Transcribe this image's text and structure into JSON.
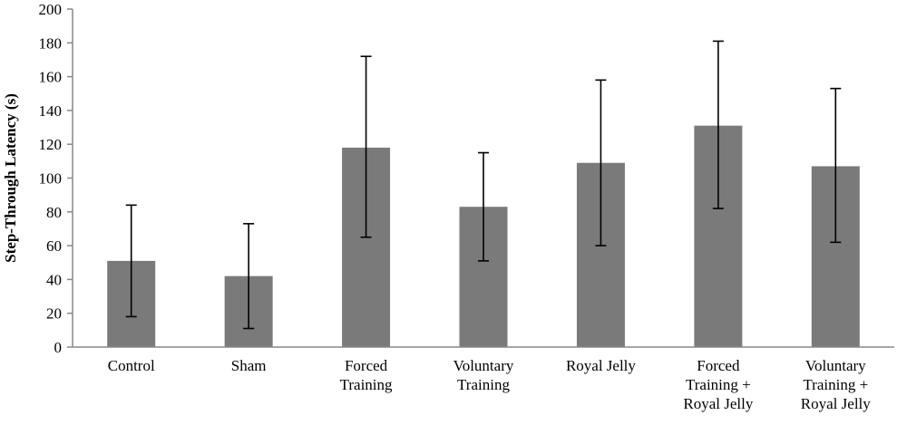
{
  "chart_data": {
    "type": "bar",
    "title": "",
    "xlabel": "",
    "ylabel": "Step-Through Latency (s)",
    "ylim": [
      0,
      200
    ],
    "yticks": [
      "0",
      "20",
      "40",
      "60",
      "80",
      "100",
      "120",
      "140",
      "160",
      "180",
      "200"
    ],
    "grid": false,
    "legend": "none",
    "bar_color": "#7a7a7a",
    "categories": [
      [
        "Control"
      ],
      [
        "Sham"
      ],
      [
        "Forced",
        "Training"
      ],
      [
        "Voluntary",
        "Training"
      ],
      [
        "Royal Jelly"
      ],
      [
        "Forced",
        "Training +",
        "Royal Jelly"
      ],
      [
        "Voluntary",
        "Training +",
        "Royal Jelly"
      ]
    ],
    "values": [
      51,
      42,
      118,
      83,
      109,
      131,
      107
    ],
    "error_upper": [
      84,
      73,
      172,
      115,
      158,
      181,
      153
    ],
    "error_lower": [
      18,
      11,
      65,
      51,
      60,
      82,
      62
    ]
  }
}
